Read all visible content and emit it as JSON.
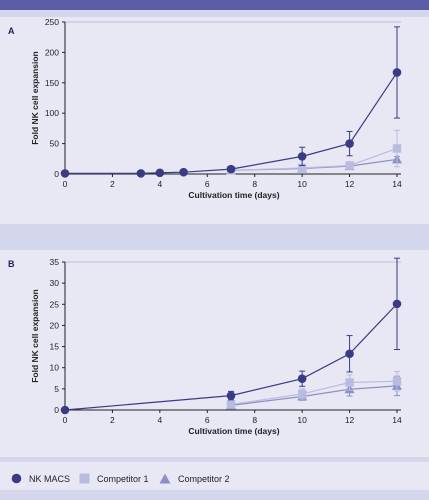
{
  "colors": {
    "nk_macs": "#3b3a84",
    "competitor_1": "#b9bbe0",
    "competitor_2": "#8d8fc4"
  },
  "legend": {
    "items": [
      {
        "label": "NK MACS",
        "marker": "circle",
        "color": "#3b3a84"
      },
      {
        "label": "Competitor 1",
        "marker": "square",
        "color": "#b9bbe0"
      },
      {
        "label": "Competitor 2",
        "marker": "triangle",
        "color": "#8d8fc4"
      }
    ]
  },
  "chart_data": [
    {
      "panel": "A",
      "type": "line",
      "xlabel": "Cultivation time (days)",
      "ylabel": "Fold NK cell expansion",
      "xlim": [
        0,
        14
      ],
      "ylim": [
        0,
        250
      ],
      "xticks": [
        0,
        2,
        4,
        6,
        8,
        10,
        12,
        14
      ],
      "yticks": [
        0,
        50,
        100,
        150,
        200,
        250
      ],
      "series": [
        {
          "name": "NK MACS",
          "marker": "circle",
          "color": "#3b3a84",
          "x": [
            0,
            3.2,
            4,
            5,
            7,
            10,
            12,
            14
          ],
          "y": [
            1,
            1,
            2,
            3,
            8,
            29,
            50,
            167
          ],
          "err": [
            0,
            0,
            0,
            0,
            2,
            15,
            20,
            75
          ]
        },
        {
          "name": "Competitor 1",
          "marker": "square",
          "color": "#b9bbe0",
          "x": [
            7,
            10,
            12,
            14
          ],
          "y": [
            6,
            10,
            14,
            42
          ],
          "err": [
            1,
            3,
            6,
            30
          ]
        },
        {
          "name": "Competitor 2",
          "marker": "triangle",
          "color": "#8d8fc4",
          "x": [
            7,
            10,
            12,
            14
          ],
          "y": [
            6,
            9,
            13,
            24
          ],
          "err": [
            1,
            2,
            4,
            5
          ]
        }
      ]
    },
    {
      "panel": "B",
      "type": "line",
      "xlabel": "Cultivation time (days)",
      "ylabel": "Fold NK cell expansion",
      "xlim": [
        0,
        14
      ],
      "ylim": [
        0,
        35
      ],
      "xticks": [
        0,
        2,
        4,
        6,
        8,
        10,
        12,
        14
      ],
      "yticks": [
        0,
        5,
        10,
        15,
        20,
        25,
        30,
        35
      ],
      "series": [
        {
          "name": "NK MACS",
          "marker": "circle",
          "color": "#3b3a84",
          "x": [
            0,
            7,
            10,
            12,
            14
          ],
          "y": [
            0,
            3.4,
            7.4,
            13.3,
            25.1
          ],
          "err": [
            0,
            1.0,
            1.8,
            4.3,
            10.8
          ]
        },
        {
          "name": "Competitor 1",
          "marker": "square",
          "color": "#b9bbe0",
          "x": [
            7,
            10,
            12,
            14
          ],
          "y": [
            1.3,
            3.8,
            6.5,
            6.8
          ],
          "err": [
            0.4,
            1.2,
            1.8,
            2.3
          ]
        },
        {
          "name": "Competitor 2",
          "marker": "triangle",
          "color": "#8d8fc4",
          "x": [
            7,
            10,
            12,
            14
          ],
          "y": [
            1.1,
            3.2,
            4.9,
            5.7
          ],
          "err": [
            0.4,
            0.9,
            1.6,
            2.3
          ]
        }
      ]
    }
  ]
}
